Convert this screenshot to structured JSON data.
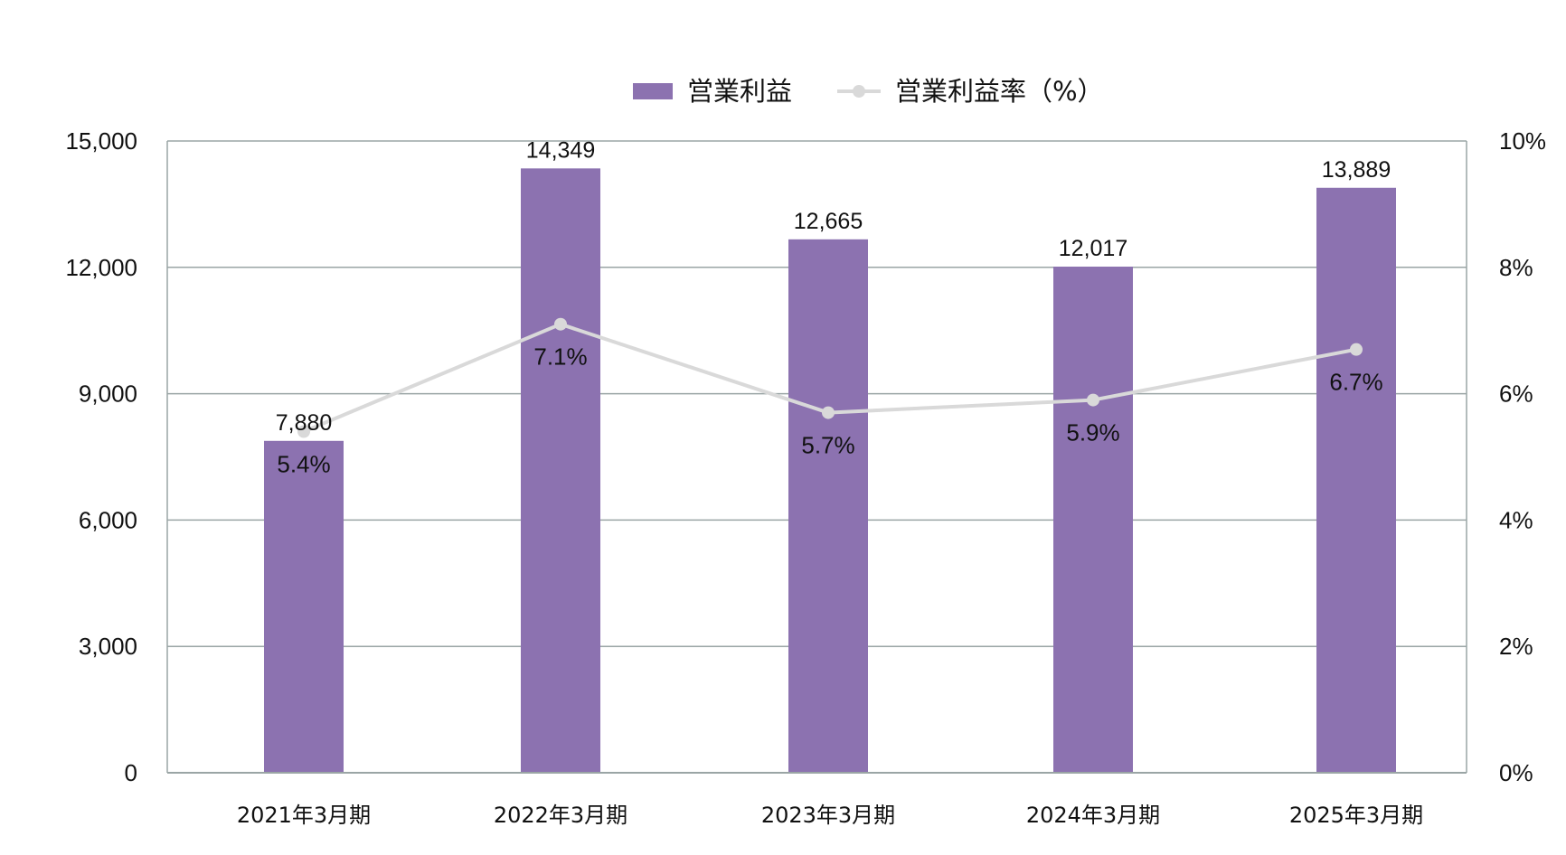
{
  "chart_data": {
    "type": "bar",
    "categories": [
      "2021年3月期",
      "2022年3月期",
      "2023年3月期",
      "2024年3月期",
      "2025年3月期"
    ],
    "series": [
      {
        "name": "営業利益",
        "type": "bar",
        "axis": "left",
        "values": [
          7880,
          14349,
          12665,
          12017,
          13889
        ],
        "labels": [
          "7,880",
          "14,349",
          "12,665",
          "12,017",
          "13,889"
        ],
        "color": "#8c72b0"
      },
      {
        "name": "営業利益率（%）",
        "type": "line",
        "axis": "right",
        "values": [
          5.4,
          7.1,
          5.7,
          5.9,
          6.7
        ],
        "labels": [
          "5.4%",
          "7.1%",
          "5.7%",
          "5.9%",
          "6.7%"
        ],
        "color": "#d9d9d9"
      }
    ],
    "y_left": {
      "ylim": [
        0,
        15000
      ],
      "ticks": [
        0,
        3000,
        6000,
        9000,
        12000,
        15000
      ],
      "tick_labels": [
        "0",
        "3,000",
        "6,000",
        "9,000",
        "12,000",
        "15,000"
      ]
    },
    "y_right": {
      "ylim": [
        0,
        10
      ],
      "ticks": [
        0,
        2,
        4,
        6,
        8,
        10
      ],
      "tick_labels": [
        "0%",
        "2%",
        "4%",
        "6%",
        "8%",
        "10%"
      ]
    },
    "grid": true,
    "legend": "top-center",
    "grid_color": "#9aa5a5",
    "label_color": "#111111"
  }
}
